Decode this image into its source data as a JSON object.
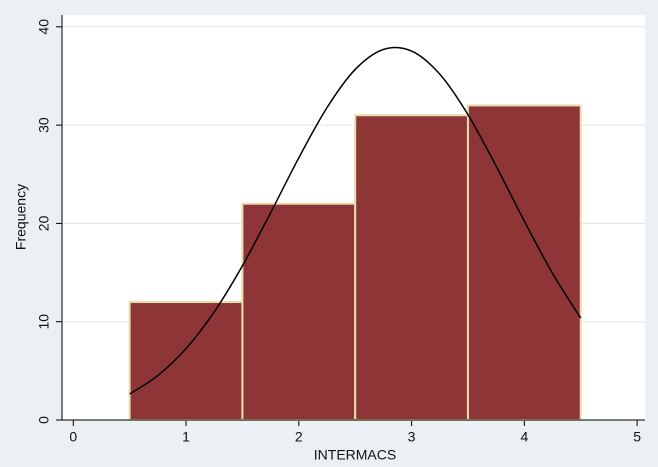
{
  "chart_data": {
    "type": "histogram",
    "x_label": "INTERMACS",
    "y_label": "Frequency",
    "bins": [
      0.5,
      1.5,
      2.5,
      3.5,
      4.5
    ],
    "values": [
      12,
      22,
      31,
      32
    ],
    "color": "#8e3538",
    "edge_color": "#e8dcaa",
    "curve": {
      "color": "#000000",
      "x": [
        0.5,
        0.75,
        1.0,
        1.25,
        1.5,
        1.75,
        2.0,
        2.25,
        2.5,
        2.75,
        3.0,
        3.25,
        3.5,
        3.75,
        4.0,
        4.25,
        4.5
      ],
      "y": [
        2.65,
        4.52,
        7.27,
        11.0,
        15.69,
        21.08,
        26.67,
        31.78,
        35.66,
        37.7,
        37.53,
        35.18,
        31.06,
        25.83,
        20.23,
        14.92,
        10.37
      ]
    },
    "xlim": [
      -0.1,
      5.07
    ],
    "ylim": [
      0,
      41.2
    ],
    "xticks": [
      0,
      1,
      2,
      3,
      4,
      5
    ],
    "yticks": [
      0,
      10,
      20,
      30,
      40
    ],
    "grid": true
  }
}
